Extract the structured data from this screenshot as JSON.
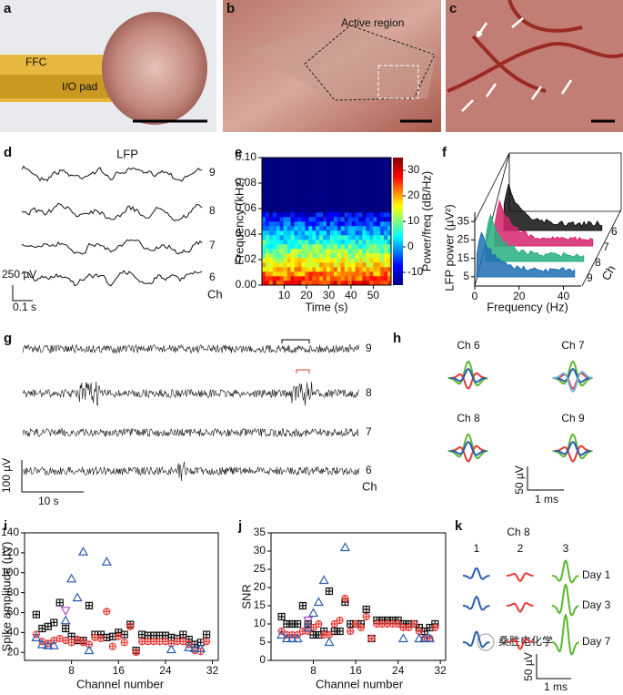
{
  "panels": {
    "a": {
      "label": "a",
      "ffc": "FFC",
      "io_pad": "I/O pad"
    },
    "b": {
      "label": "b",
      "active_region": "Active region"
    },
    "c": {
      "label": "c"
    },
    "d": {
      "label": "d",
      "title": "LFP",
      "channels": [
        9,
        8,
        7,
        6
      ],
      "scale_v": "250 µV",
      "scale_t": "0.1 s",
      "ch": "Ch"
    },
    "e": {
      "label": "e",
      "xlabel": "Time (s)",
      "ylabel": "Frequency (kHz)",
      "xlim": [
        0,
        58
      ],
      "xticks": [
        10,
        20,
        30,
        40,
        50
      ],
      "ylim": [
        0,
        0.1
      ],
      "yticks": [
        {
          "value": 0,
          "label": "0.00"
        },
        {
          "value": 0.02,
          "label": "0.02"
        },
        {
          "value": 0.04,
          "label": "0.04"
        },
        {
          "value": 0.06,
          "label": "0.06"
        },
        {
          "value": 0.08,
          "label": "0.08"
        },
        {
          "value": 0.1,
          "label": "0.10"
        }
      ],
      "colorbar": {
        "label": "Power/freq (dB/Hz)",
        "lim": [
          -15,
          35
        ],
        "ticks": [
          -10,
          0,
          10,
          20,
          30
        ]
      }
    },
    "f": {
      "label": "f",
      "xlabel": "Frequency (Hz)",
      "ylabel": "LFP power (µV²)",
      "xlim": [
        0,
        48
      ],
      "xticks": [
        0,
        20,
        40
      ],
      "ylim": [
        0,
        40
      ],
      "yticks": [
        5,
        15,
        25,
        35
      ],
      "ch": "Ch",
      "channels": [
        6,
        7,
        8,
        9
      ],
      "colors": [
        "#111111",
        "#d6246e",
        "#27b07f",
        "#1f6fb2"
      ]
    },
    "g": {
      "label": "g",
      "channels": [
        9,
        8,
        7,
        6
      ],
      "scale_v": "100 µV",
      "scale_t": "10 s",
      "ch": "Ch"
    },
    "h": {
      "label": "h",
      "titles": [
        "Ch 6",
        "Ch 7",
        "Ch 8",
        "Ch 9"
      ],
      "scale_v": "50 µV",
      "scale_t": "1 ms"
    },
    "i": {
      "label": "i",
      "type": "scatter",
      "xlabel": "Channel number",
      "ylabel": "Spike amplitude (µV)",
      "xlim": [
        0,
        33
      ],
      "xticks": [
        8,
        16,
        24,
        32
      ],
      "ylim": [
        12,
        140
      ],
      "yticks": [
        20,
        40,
        60,
        80,
        100,
        120,
        140
      ],
      "series": [
        {
          "color": "#111111",
          "marker": "square",
          "x": [
            2,
            3,
            4,
            5,
            6,
            7,
            8,
            9,
            10,
            11,
            12,
            13,
            14,
            15,
            16,
            17,
            18,
            19,
            20,
            21,
            22,
            23,
            24,
            25,
            26,
            27,
            28,
            29,
            30,
            31
          ],
          "values": [
            58,
            44,
            46,
            50,
            70,
            44,
            36,
            32,
            32,
            67,
            38,
            38,
            35,
            36,
            40,
            38,
            48,
            22,
            38,
            37,
            37,
            37,
            37,
            35,
            34,
            38,
            33,
            28,
            30,
            38
          ]
        },
        {
          "color": "#e53935",
          "marker": "circle",
          "x": [
            2,
            3,
            4,
            5,
            6,
            7,
            8,
            9,
            10,
            11,
            12,
            13,
            14,
            15,
            16,
            17,
            18,
            19,
            20,
            21,
            22,
            23,
            24,
            25,
            26,
            27,
            28,
            29,
            30,
            31
          ],
          "values": [
            38,
            31,
            29,
            32,
            34,
            32,
            30,
            33,
            30,
            28,
            35,
            34,
            61,
            26,
            36,
            30,
            46,
            20,
            31,
            31,
            31,
            31,
            31,
            29,
            31,
            31,
            28,
            22,
            21,
            31
          ]
        },
        {
          "color": "#2a5db0",
          "marker": "triangle",
          "x": [
            2,
            3,
            4,
            5,
            7,
            8,
            9,
            10,
            11,
            14,
            25,
            28,
            29,
            30
          ],
          "values": [
            35,
            28,
            27,
            27,
            52,
            94,
            75,
            121,
            22,
            111,
            23,
            25,
            24,
            24
          ]
        },
        {
          "color": "#b04fc0",
          "marker": "triangle-down",
          "x": [
            7
          ],
          "values": [
            62
          ]
        }
      ]
    },
    "j": {
      "label": "j",
      "type": "scatter",
      "xlabel": "Channel number",
      "ylabel": "SNR",
      "xlim": [
        0,
        33
      ],
      "xticks": [
        8,
        16,
        24,
        32
      ],
      "ylim": [
        0,
        35
      ],
      "yticks": [
        0,
        5,
        10,
        15,
        20,
        25,
        30,
        35
      ],
      "series": [
        {
          "color": "#111111",
          "marker": "square",
          "x": [
            2,
            3,
            4,
            5,
            6,
            7,
            8,
            9,
            10,
            11,
            12,
            13,
            14,
            15,
            16,
            17,
            18,
            19,
            20,
            21,
            22,
            23,
            24,
            25,
            26,
            27,
            28,
            29,
            30,
            31
          ],
          "values": [
            12,
            10,
            10,
            10,
            15,
            10,
            7,
            7,
            8,
            19,
            8,
            8,
            16,
            10,
            10,
            10,
            14,
            6,
            11,
            11,
            11,
            11,
            11,
            10,
            10,
            10,
            9,
            8,
            9,
            10
          ]
        },
        {
          "color": "#e53935",
          "marker": "circle",
          "x": [
            2,
            3,
            4,
            5,
            6,
            7,
            8,
            9,
            10,
            11,
            12,
            13,
            14,
            15,
            16,
            17,
            18,
            19,
            20,
            21,
            22,
            23,
            24,
            25,
            26,
            27,
            28,
            29,
            30,
            31
          ],
          "values": [
            8,
            7,
            7,
            7,
            8,
            8,
            9,
            10,
            7,
            7,
            10,
            11,
            17,
            8,
            10,
            9,
            12,
            6,
            10,
            10,
            10,
            10,
            10,
            9,
            9,
            10,
            8,
            6,
            6,
            9
          ]
        },
        {
          "color": "#2a5db0",
          "marker": "triangle",
          "x": [
            2,
            3,
            4,
            5,
            7,
            8,
            9,
            10,
            11,
            14,
            25,
            28,
            29,
            30
          ],
          "values": [
            7,
            6,
            6,
            6,
            9,
            13,
            16,
            22,
            5,
            31,
            6,
            6,
            6,
            6
          ]
        },
        {
          "color": "#b04fc0",
          "marker": "triangle-down",
          "x": [
            7
          ],
          "values": [
            11
          ]
        }
      ]
    },
    "k": {
      "label": "k",
      "title": "Ch 8",
      "units": [
        "1",
        "2",
        "3"
      ],
      "unit_colors": [
        "#2a5db0",
        "#e53935",
        "#5cb82e"
      ],
      "days": [
        "Day 1",
        "Day 3",
        "Day 7"
      ],
      "scale_v": "50 µV",
      "scale_t": "1 ms"
    }
  },
  "watermark": "桑胜电化学"
}
